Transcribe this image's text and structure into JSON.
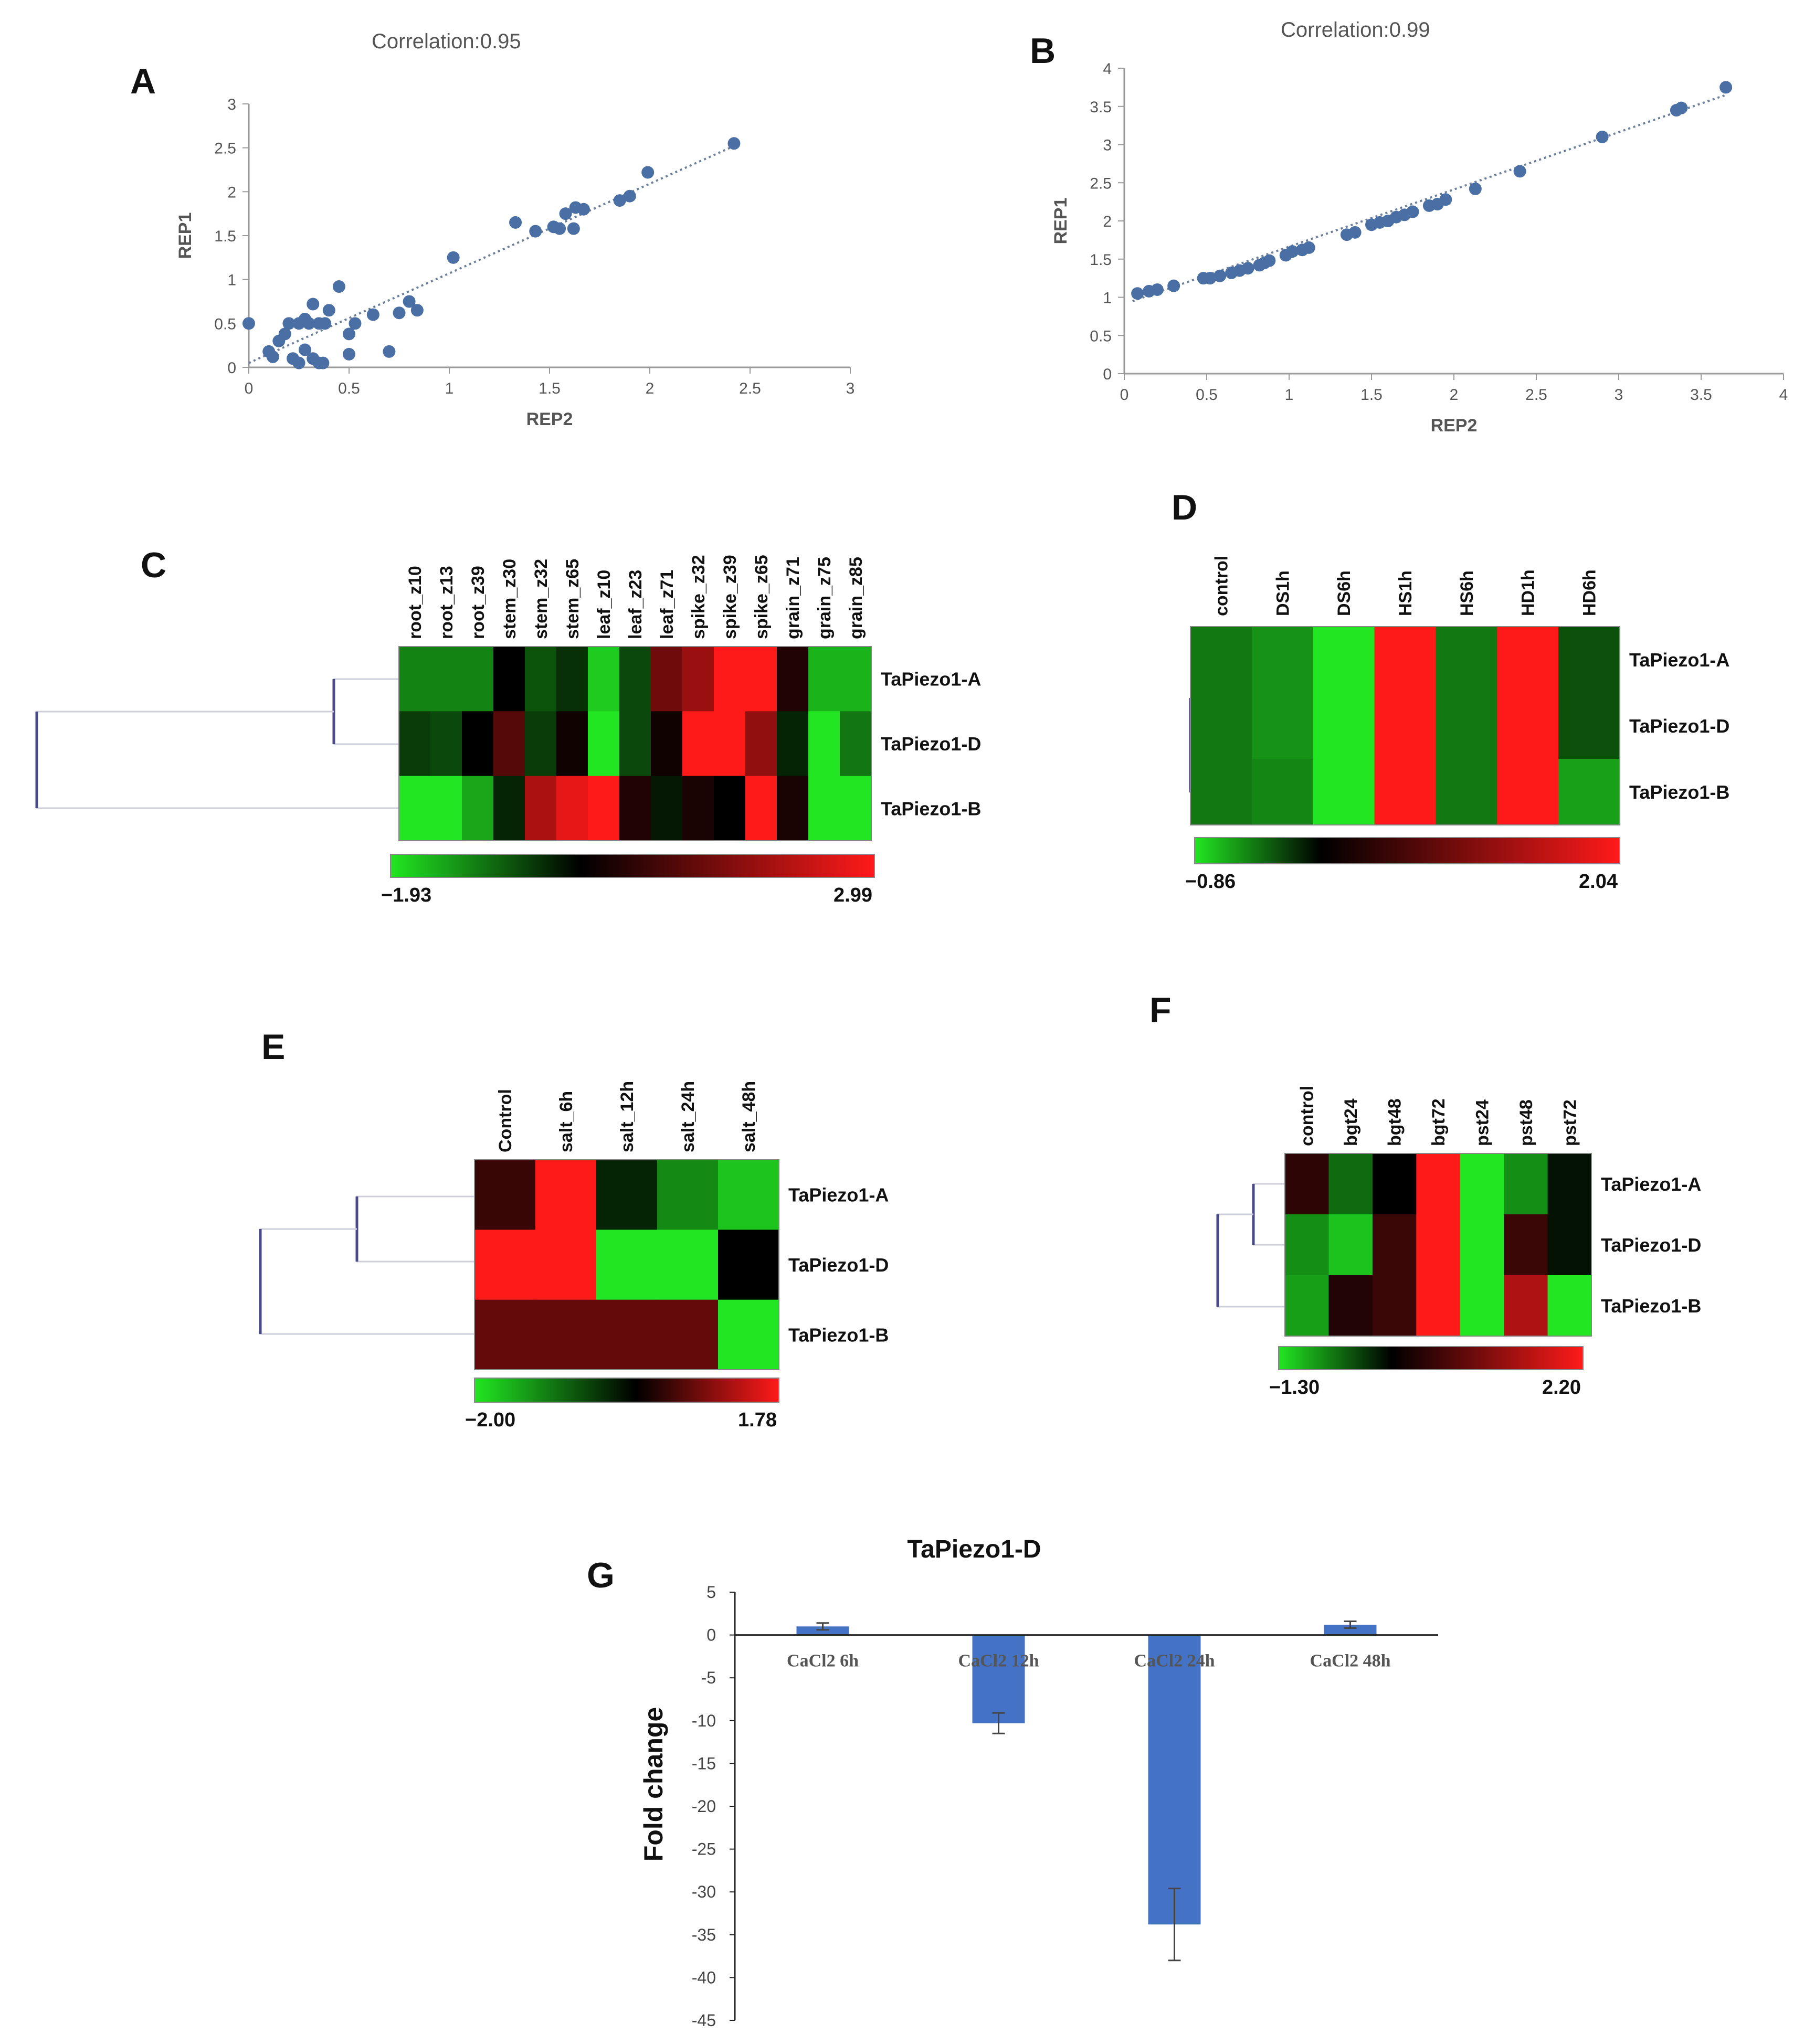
{
  "colors": {
    "point": "#4a6fa5",
    "bar": "#4472c4",
    "green": "#22e622",
    "black": "#000000",
    "red": "#ff1a1a",
    "tree": "#4a4a8a"
  },
  "panels": {
    "A": {
      "label": "A",
      "correlation": "Correlation:0.95"
    },
    "B": {
      "label": "B",
      "correlation": "Correlation:0.99"
    },
    "C": {
      "label": "C"
    },
    "D": {
      "label": "D"
    },
    "E": {
      "label": "E"
    },
    "F": {
      "label": "F"
    },
    "G": {
      "label": "G"
    }
  },
  "chart_data": [
    {
      "id": "A",
      "type": "scatter",
      "title": "Correlation:0.95",
      "xlabel": "REP2",
      "ylabel": "REP1",
      "xlim": [
        0,
        3
      ],
      "ylim": [
        0,
        3
      ],
      "xticks": [
        "0",
        "0.5",
        "1",
        "1.5",
        "2",
        "2.5",
        "3"
      ],
      "yticks": [
        "0",
        "0.5",
        "1",
        "1.5",
        "2",
        "2.5",
        "3"
      ],
      "trendline": [
        [
          0,
          0.05
        ],
        [
          2.42,
          2.52
        ]
      ],
      "points": [
        [
          0,
          0.5
        ],
        [
          0.1,
          0.18
        ],
        [
          0.12,
          0.12
        ],
        [
          0.15,
          0.3
        ],
        [
          0.18,
          0.38
        ],
        [
          0.2,
          0.5
        ],
        [
          0.22,
          0.1
        ],
        [
          0.25,
          0.05
        ],
        [
          0.25,
          0.5
        ],
        [
          0.28,
          0.55
        ],
        [
          0.28,
          0.2
        ],
        [
          0.3,
          0.5
        ],
        [
          0.32,
          0.72
        ],
        [
          0.32,
          0.1
        ],
        [
          0.35,
          0.5
        ],
        [
          0.35,
          0.05
        ],
        [
          0.37,
          0.05
        ],
        [
          0.38,
          0.5
        ],
        [
          0.4,
          0.65
        ],
        [
          0.45,
          0.92
        ],
        [
          0.5,
          0.15
        ],
        [
          0.5,
          0.38
        ],
        [
          0.53,
          0.5
        ],
        [
          0.62,
          0.6
        ],
        [
          0.7,
          0.18
        ],
        [
          0.75,
          0.62
        ],
        [
          0.8,
          0.75
        ],
        [
          0.84,
          0.65
        ],
        [
          1.02,
          1.25
        ],
        [
          1.33,
          1.65
        ],
        [
          1.43,
          1.55
        ],
        [
          1.52,
          1.6
        ],
        [
          1.55,
          1.58
        ],
        [
          1.58,
          1.75
        ],
        [
          1.62,
          1.58
        ],
        [
          1.63,
          1.82
        ],
        [
          1.67,
          1.8
        ],
        [
          1.85,
          1.9
        ],
        [
          1.9,
          1.95
        ],
        [
          1.99,
          2.22
        ],
        [
          2.42,
          2.55
        ]
      ]
    },
    {
      "id": "B",
      "type": "scatter",
      "title": "Correlation:0.99",
      "xlabel": "REP2",
      "ylabel": "REP1",
      "xlim": [
        0,
        4
      ],
      "ylim": [
        0,
        4
      ],
      "xticks": [
        "0",
        "0.5",
        "1",
        "1.5",
        "2",
        "2.5",
        "3",
        "3.5",
        "4"
      ],
      "yticks": [
        "0",
        "0.5",
        "1",
        "1.5",
        "2",
        "2.5",
        "3",
        "3.5",
        "4"
      ],
      "trendline": [
        [
          0.05,
          0.95
        ],
        [
          3.65,
          3.65
        ]
      ],
      "points": [
        [
          0.08,
          1.05
        ],
        [
          0.15,
          1.08
        ],
        [
          0.2,
          1.1
        ],
        [
          0.3,
          1.15
        ],
        [
          0.48,
          1.25
        ],
        [
          0.52,
          1.25
        ],
        [
          0.58,
          1.28
        ],
        [
          0.65,
          1.32
        ],
        [
          0.7,
          1.35
        ],
        [
          0.75,
          1.38
        ],
        [
          0.82,
          1.42
        ],
        [
          0.85,
          1.45
        ],
        [
          0.88,
          1.48
        ],
        [
          0.98,
          1.55
        ],
        [
          1.02,
          1.6
        ],
        [
          1.08,
          1.62
        ],
        [
          1.12,
          1.65
        ],
        [
          1.35,
          1.82
        ],
        [
          1.4,
          1.85
        ],
        [
          1.5,
          1.95
        ],
        [
          1.55,
          1.98
        ],
        [
          1.6,
          2.0
        ],
        [
          1.65,
          2.05
        ],
        [
          1.7,
          2.08
        ],
        [
          1.75,
          2.12
        ],
        [
          1.85,
          2.2
        ],
        [
          1.9,
          2.22
        ],
        [
          1.95,
          2.28
        ],
        [
          2.13,
          2.42
        ],
        [
          2.4,
          2.65
        ],
        [
          2.9,
          3.1
        ],
        [
          3.35,
          3.45
        ],
        [
          3.38,
          3.48
        ],
        [
          3.65,
          3.75
        ]
      ]
    },
    {
      "id": "C",
      "type": "heatmap",
      "columns": [
        "root_z10",
        "root_z13",
        "root_z39",
        "stem_z30",
        "stem_z32",
        "stem_z65",
        "leaf_z10",
        "leaf_z23",
        "leaf_z71",
        "spike_z32",
        "spike_z39",
        "spike_z65",
        "grain_z71",
        "grain_z75",
        "grain_z85"
      ],
      "rows": [
        "TaPiezo1-A",
        "TaPiezo1-D",
        "TaPiezo1-B"
      ],
      "values": [
        [
          -1.1,
          -1.1,
          -1.1,
          0.0,
          -0.7,
          -0.4,
          -1.7,
          -0.6,
          1.3,
          1.8,
          2.99,
          2.99,
          0.4,
          -1.5,
          -1.5
        ],
        [
          -0.5,
          -0.6,
          0.0,
          1.0,
          -0.5,
          0.2,
          -1.93,
          -0.6,
          0.2,
          2.99,
          2.99,
          1.7,
          -0.3,
          -1.93,
          -1.0
        ],
        [
          -1.93,
          -1.93,
          -1.4,
          -0.3,
          2.0,
          2.7,
          2.99,
          0.4,
          -0.2,
          0.3,
          0.0,
          2.99,
          0.3,
          -1.93,
          -1.93
        ]
      ],
      "scale_min": "−1.93",
      "scale_max": "2.99",
      "vmin": -1.93,
      "vmax": 2.99
    },
    {
      "id": "D",
      "type": "heatmap",
      "columns": [
        "control",
        "DS1h",
        "DS6h",
        "HS1h",
        "HS6h",
        "HD1h",
        "HD6h"
      ],
      "rows": [
        "TaPiezo1-A",
        "TaPiezo1-D",
        "TaPiezo1-B"
      ],
      "values": [
        [
          -0.45,
          -0.55,
          -0.86,
          2.04,
          -0.45,
          2.04,
          -0.3
        ],
        [
          -0.45,
          -0.55,
          -0.86,
          2.04,
          -0.45,
          2.04,
          -0.3
        ],
        [
          -0.45,
          -0.5,
          -0.86,
          2.04,
          -0.45,
          2.04,
          -0.6
        ]
      ],
      "scale_min": "−0.86",
      "scale_max": "2.04",
      "vmin": -0.86,
      "vmax": 2.04
    },
    {
      "id": "E",
      "type": "heatmap",
      "columns": [
        "Control",
        "salt_6h",
        "salt_12h",
        "salt_24h",
        "salt_48h"
      ],
      "rows": [
        "TaPiezo1-A",
        "TaPiezo1-D",
        "TaPiezo1-B"
      ],
      "values": [
        [
          0.4,
          1.78,
          -0.3,
          -1.2,
          -1.7
        ],
        [
          1.78,
          1.78,
          -2.0,
          -2.0,
          0.0
        ],
        [
          0.7,
          0.7,
          0.7,
          0.7,
          -2.0
        ]
      ],
      "scale_min": "−2.00",
      "scale_max": "1.78",
      "vmin": -2.0,
      "vmax": 1.78
    },
    {
      "id": "F",
      "type": "heatmap",
      "columns": [
        "control",
        "bgt24",
        "bgt48",
        "bgt72",
        "pst24",
        "pst48",
        "pst72"
      ],
      "rows": [
        "TaPiezo1-A",
        "TaPiezo1-D",
        "TaPiezo1-B"
      ],
      "values": [
        [
          0.4,
          -0.6,
          0.0,
          2.2,
          -1.3,
          -0.8,
          -0.1
        ],
        [
          -0.8,
          -1.1,
          0.5,
          2.2,
          -1.3,
          0.5,
          -0.1
        ],
        [
          -0.9,
          0.3,
          0.5,
          2.2,
          -1.3,
          1.5,
          -1.3
        ]
      ],
      "scale_min": "−1.30",
      "scale_max": "2.20",
      "vmin": -1.3,
      "vmax": 2.2
    },
    {
      "id": "G",
      "type": "bar",
      "title": "TaPiezo1-D",
      "categories": [
        "CaCl2 6h",
        "CaCl2 12h",
        "CaCl2 24h",
        "CaCl2 48h"
      ],
      "values": [
        1.0,
        -10.3,
        -33.8,
        1.2
      ],
      "errors": [
        0.4,
        1.2,
        4.2,
        0.4
      ],
      "ylabel": "Fold change",
      "ylim": [
        -45,
        5
      ],
      "yticks": [
        "5",
        "0",
        "-5",
        "-10",
        "-15",
        "-20",
        "-25",
        "-30",
        "-35",
        "-40",
        "-45"
      ]
    }
  ]
}
